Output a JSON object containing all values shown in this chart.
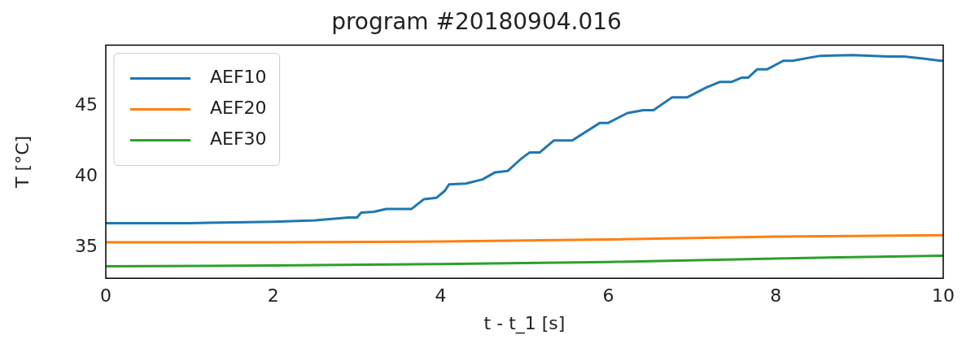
{
  "chart_data": {
    "type": "line",
    "title": "program #20180904.016",
    "xlabel": "t - t_1 [s]",
    "ylabel": "T [°C]",
    "xlim": [
      0,
      10
    ],
    "xticks": [
      0,
      2,
      4,
      6,
      8,
      10
    ],
    "ylim": [
      32.8,
      49.3
    ],
    "yticks": [
      35,
      40,
      45
    ],
    "grid": false,
    "legend": "top left",
    "marker": "none",
    "line_style": "solid",
    "series": [
      {
        "name": "AEF10",
        "color": "#1f77b4",
        "x": [
          0,
          1,
          2,
          2.5,
          2.9,
          3.0,
          3.05,
          3.2,
          3.35,
          3.65,
          3.8,
          3.95,
          4.05,
          4.1,
          4.3,
          4.5,
          4.65,
          4.8,
          4.96,
          5.06,
          5.18,
          5.35,
          5.57,
          5.9,
          6.0,
          6.23,
          6.42,
          6.54,
          6.76,
          6.94,
          7.17,
          7.33,
          7.47,
          7.59,
          7.67,
          7.78,
          7.9,
          8.09,
          8.2,
          8.53,
          8.92,
          9.34,
          9.53,
          9.76,
          9.97,
          10
        ],
        "values": [
          36.7,
          36.7,
          36.8,
          36.9,
          37.1,
          37.1,
          37.45,
          37.5,
          37.7,
          37.7,
          38.4,
          38.5,
          39.0,
          39.45,
          39.5,
          39.8,
          40.3,
          40.4,
          41.26,
          41.7,
          41.7,
          42.55,
          42.55,
          43.8,
          43.8,
          44.5,
          44.7,
          44.7,
          45.6,
          45.6,
          46.3,
          46.7,
          46.7,
          47.0,
          47.0,
          47.6,
          47.6,
          48.2,
          48.2,
          48.55,
          48.6,
          48.5,
          48.5,
          48.35,
          48.2,
          48.2
        ]
      },
      {
        "name": "AEF20",
        "color": "#ff7f0e",
        "x": [
          0,
          2,
          4,
          6,
          8,
          10
        ],
        "values": [
          35.35,
          35.35,
          35.4,
          35.55,
          35.75,
          35.85
        ]
      },
      {
        "name": "AEF30",
        "color": "#2ca02c",
        "x": [
          0,
          2,
          4,
          6,
          8,
          10
        ],
        "values": [
          33.65,
          33.7,
          33.8,
          33.95,
          34.2,
          34.4
        ]
      }
    ]
  }
}
